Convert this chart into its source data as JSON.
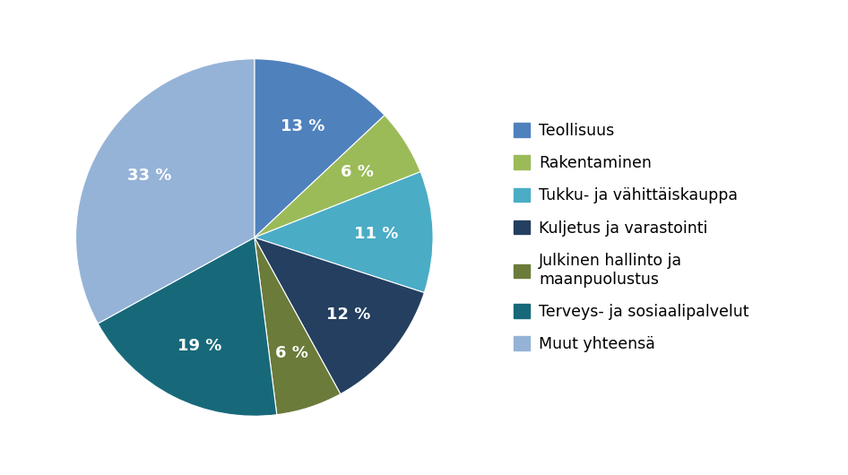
{
  "legend_labels": [
    "Teollisuus",
    "Rakentaminen",
    "Tukku- ja vähittäiskauppa",
    "Kuljetus ja varastointi",
    "Julkinen hallinto ja\nmaanpuolustus",
    "Terveys- ja sosiaalipalvelut",
    "Muut yhteensä"
  ],
  "values": [
    13,
    6,
    11,
    12,
    6,
    19,
    33
  ],
  "colors": [
    "#4F81BD",
    "#9BBB59",
    "#4BACC6",
    "#243F60",
    "#6B7B3A",
    "#17697A",
    "#95B3D7"
  ],
  "pct_labels": [
    "13 %",
    "6 %",
    "11 %",
    "12 %",
    "6 %",
    "19 %",
    "33 %"
  ],
  "background_color": "#FFFFFF",
  "label_fontsize": 13,
  "legend_fontsize": 12.5
}
